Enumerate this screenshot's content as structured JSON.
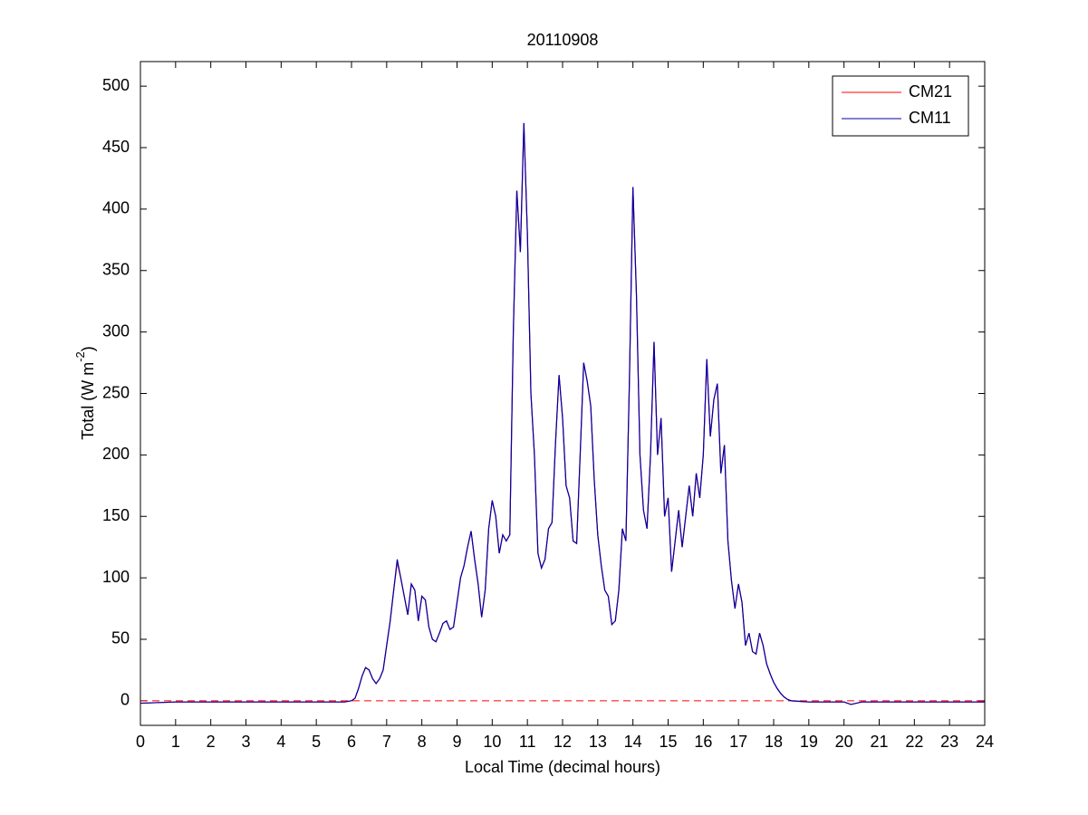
{
  "chart_data": {
    "type": "line",
    "title": "20110908",
    "x_label": "Local Time (decimal hours)",
    "y_label": {
      "text": "Total (W m",
      "superscript": "-2",
      "end": ")"
    },
    "xlim": [
      0,
      24
    ],
    "xticks": [
      0,
      1,
      2,
      3,
      4,
      5,
      6,
      7,
      8,
      9,
      10,
      11,
      12,
      13,
      14,
      15,
      16,
      17,
      18,
      19,
      20,
      21,
      22,
      23,
      24
    ],
    "ylim": [
      -20,
      520
    ],
    "yticks": [
      0,
      50,
      100,
      150,
      200,
      250,
      300,
      350,
      400,
      450,
      500
    ],
    "grid": false,
    "legend": "upper right",
    "hline": {
      "value": 0,
      "color": "#ff0000",
      "style": "dashed"
    },
    "x": [
      0,
      1,
      2,
      3,
      4,
      5,
      5.8,
      6.0,
      6.1,
      6.2,
      6.3,
      6.4,
      6.5,
      6.6,
      6.7,
      6.8,
      6.9,
      7.0,
      7.1,
      7.2,
      7.3,
      7.4,
      7.5,
      7.6,
      7.7,
      7.8,
      7.9,
      8.0,
      8.1,
      8.2,
      8.3,
      8.4,
      8.5,
      8.6,
      8.7,
      8.8,
      8.9,
      9.0,
      9.1,
      9.2,
      9.3,
      9.4,
      9.5,
      9.6,
      9.7,
      9.8,
      9.9,
      10.0,
      10.1,
      10.2,
      10.3,
      10.4,
      10.5,
      10.6,
      10.7,
      10.8,
      10.9,
      11.0,
      11.1,
      11.2,
      11.3,
      11.4,
      11.5,
      11.6,
      11.7,
      11.8,
      11.9,
      12.0,
      12.1,
      12.2,
      12.3,
      12.4,
      12.5,
      12.6,
      12.7,
      12.8,
      12.9,
      13.0,
      13.1,
      13.2,
      13.3,
      13.4,
      13.5,
      13.6,
      13.7,
      13.8,
      13.9,
      14.0,
      14.1,
      14.2,
      14.3,
      14.4,
      14.5,
      14.6,
      14.7,
      14.8,
      14.9,
      15.0,
      15.1,
      15.2,
      15.3,
      15.4,
      15.5,
      15.6,
      15.7,
      15.8,
      15.9,
      16.0,
      16.1,
      16.2,
      16.3,
      16.4,
      16.5,
      16.6,
      16.7,
      16.8,
      16.9,
      17.0,
      17.1,
      17.2,
      17.3,
      17.4,
      17.5,
      17.6,
      17.7,
      17.8,
      17.9,
      18.0,
      18.1,
      18.2,
      18.3,
      18.4,
      18.5,
      19,
      20,
      20.2,
      20.5,
      21,
      22,
      23,
      24
    ],
    "series": [
      {
        "name": "CM21",
        "color": "#ff0000",
        "values": [
          -2,
          -1,
          -1,
          -1,
          -1,
          -1,
          -1,
          0,
          2,
          10,
          20,
          27,
          25,
          18,
          14,
          18,
          25,
          45,
          65,
          90,
          113,
          100,
          85,
          70,
          95,
          90,
          65,
          85,
          82,
          60,
          50,
          48,
          55,
          63,
          65,
          58,
          60,
          80,
          100,
          110,
          125,
          138,
          115,
          95,
          68,
          90,
          140,
          163,
          150,
          120,
          135,
          130,
          135,
          300,
          415,
          365,
          470,
          380,
          250,
          200,
          120,
          108,
          115,
          140,
          145,
          210,
          265,
          230,
          175,
          165,
          130,
          128,
          200,
          275,
          260,
          240,
          180,
          135,
          110,
          90,
          85,
          62,
          65,
          90,
          140,
          130,
          260,
          418,
          330,
          200,
          155,
          140,
          200,
          292,
          200,
          230,
          150,
          165,
          105,
          130,
          155,
          125,
          150,
          175,
          150,
          185,
          165,
          200,
          278,
          215,
          245,
          258,
          185,
          208,
          130,
          98,
          75,
          95,
          80,
          45,
          55,
          40,
          38,
          55,
          45,
          30,
          22,
          15,
          10,
          6,
          3,
          1,
          0,
          -1,
          -1,
          -3,
          -1,
          -1,
          -1,
          -1,
          -1
        ]
      },
      {
        "name": "CM11",
        "color": "#0000aa",
        "values": [
          -2,
          -1,
          -1,
          -1,
          -1,
          -1,
          -1,
          0,
          2,
          10,
          20,
          27,
          25,
          18,
          14,
          18,
          25,
          45,
          65,
          90,
          115,
          100,
          85,
          70,
          95,
          90,
          65,
          85,
          82,
          60,
          50,
          48,
          55,
          63,
          65,
          58,
          60,
          80,
          100,
          110,
          125,
          138,
          115,
          95,
          68,
          90,
          140,
          163,
          150,
          120,
          135,
          130,
          135,
          300,
          415,
          365,
          470,
          380,
          250,
          200,
          120,
          108,
          115,
          140,
          145,
          210,
          265,
          230,
          175,
          165,
          130,
          128,
          200,
          275,
          260,
          240,
          180,
          135,
          110,
          90,
          85,
          62,
          65,
          90,
          140,
          130,
          260,
          418,
          330,
          200,
          155,
          140,
          200,
          292,
          200,
          230,
          150,
          165,
          105,
          130,
          155,
          125,
          150,
          175,
          150,
          185,
          165,
          200,
          278,
          215,
          245,
          258,
          185,
          208,
          130,
          98,
          75,
          95,
          80,
          45,
          55,
          40,
          38,
          55,
          45,
          30,
          22,
          15,
          10,
          6,
          3,
          1,
          0,
          -1,
          -1,
          -3,
          -1,
          -1,
          -1,
          -1,
          -1
        ]
      }
    ]
  }
}
